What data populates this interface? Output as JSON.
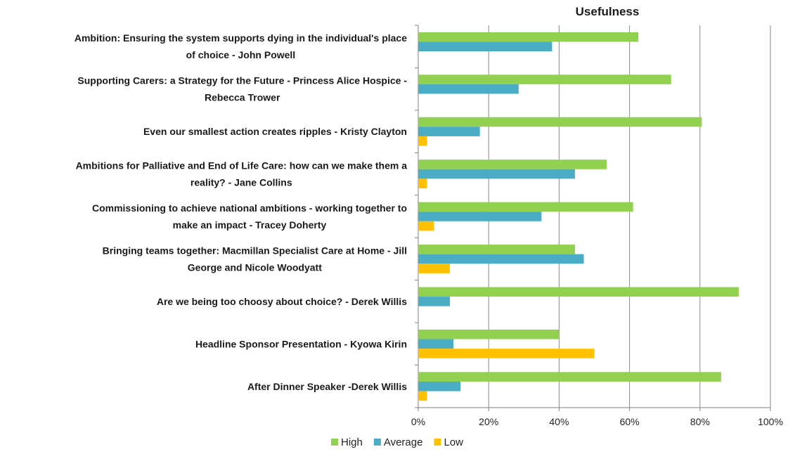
{
  "chart_data": {
    "type": "bar",
    "orientation": "horizontal",
    "title": "Usefulness",
    "xlabel": "",
    "ylabel": "",
    "xlim": [
      0,
      100
    ],
    "x_ticks": [
      "0%",
      "20%",
      "40%",
      "60%",
      "80%",
      "100%"
    ],
    "grid": true,
    "legend_position": "bottom",
    "categories": [
      [
        "Ambition: Ensuring the system supports dying in the individual's place",
        "of choice - John Powell"
      ],
      [
        "Supporting Carers: a Strategy for the Future - Princess Alice Hospice -",
        "Rebecca Trower"
      ],
      [
        "Even our smallest action creates ripples - Kristy Clayton"
      ],
      [
        "Ambitions for Palliative and End of Life Care: how can we make them a",
        "reality? - Jane Collins"
      ],
      [
        "Commissioning to achieve national ambitions - working together to",
        "make an impact - Tracey Doherty"
      ],
      [
        "Bringing teams together: Macmillan Specialist Care at Home - Jill",
        "George and Nicole Woodyatt"
      ],
      [
        "Are we being too choosy about choice? - Derek Willis"
      ],
      [
        "Headline Sponsor Presentation - Kyowa Kirin"
      ],
      [
        "After Dinner Speaker -Derek Willis"
      ]
    ],
    "series": [
      {
        "name": "High",
        "color": "#92d050",
        "values": [
          62.5,
          71.8,
          80.5,
          53.5,
          61,
          44.5,
          91,
          40,
          86
        ]
      },
      {
        "name": "Average",
        "color": "#4bacc6",
        "values": [
          38,
          28.5,
          17.5,
          44.5,
          35,
          47,
          9,
          10,
          12
        ]
      },
      {
        "name": "Low",
        "color": "#ffc000",
        "values": [
          0,
          0,
          2.5,
          2.5,
          4.5,
          9,
          0,
          50,
          2.5
        ]
      }
    ]
  }
}
